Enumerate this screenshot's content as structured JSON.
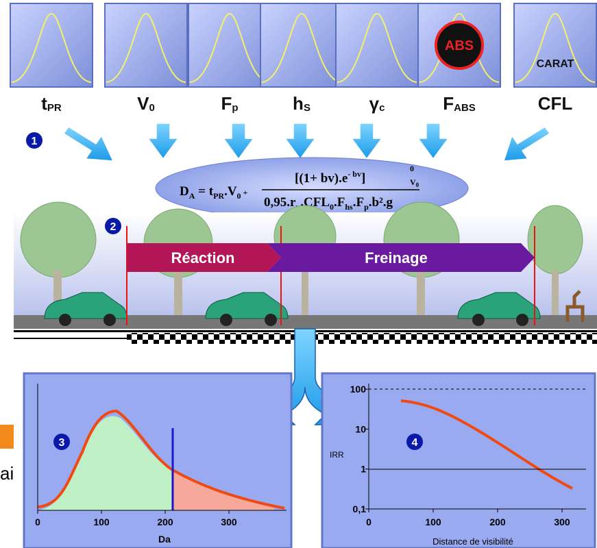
{
  "parameters": [
    {
      "symbol": "t",
      "sub": "PR"
    },
    {
      "symbol": "V",
      "sub": "0"
    },
    {
      "symbol": "F",
      "sub": "p"
    },
    {
      "symbol": "h",
      "sub": "S"
    },
    {
      "symbol": "γ",
      "sub": "c"
    },
    {
      "symbol": "F",
      "sub": "ABS"
    },
    {
      "symbol": "CFL",
      "sub": ""
    }
  ],
  "icon_texts": {
    "abs": "ABS",
    "carat": "CARAT"
  },
  "steps": [
    "1",
    "2",
    "3",
    "4"
  ],
  "formula": {
    "d": "D",
    "d_sub": "A",
    "eq": " = ",
    "t": "t",
    "t_sub": "PR",
    "v": ".V",
    "v_sub": "0",
    "plus": " + ",
    "num": "[(1+ bv).e",
    "num_sup": "- bv",
    "num_close": "]",
    "upper": "0",
    "lower": "V",
    "lower_sub": "0",
    "den1": "0,95.r",
    "den1_sub": "μ",
    "den2": ".CFL",
    "den2_sub": "0",
    "den3": ".F",
    "den3_sub": "hs",
    "den4": ".F",
    "den4_sub": "p",
    "den5": ".b².g"
  },
  "phases": {
    "reaction": "Réaction",
    "braking": "Freinage"
  },
  "panel3": {
    "xticks": [
      0,
      100,
      200,
      300
    ],
    "xlabel": "Da"
  },
  "panel4": {
    "xticks": [
      0,
      100,
      200,
      300
    ],
    "yticks": [
      {
        "value": 100,
        "label": "100"
      },
      {
        "value": 10,
        "label": "10"
      },
      {
        "value": 1,
        "label": "1"
      },
      {
        "value": 0.1,
        "label": "0,1"
      }
    ],
    "ylabel": "IRR",
    "xlabel": "Distance de visibilité"
  },
  "side_text": "ai"
}
